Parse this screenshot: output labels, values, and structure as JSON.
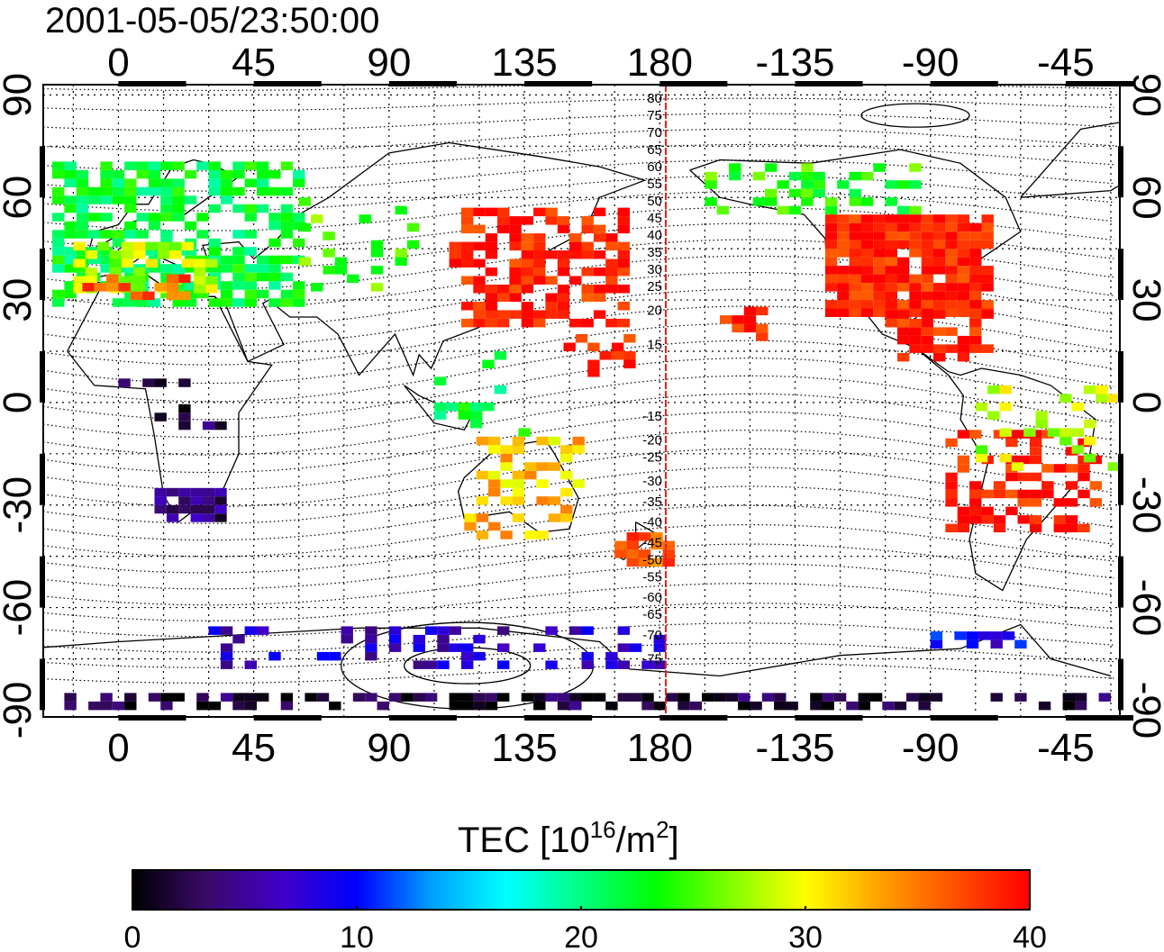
{
  "header": {
    "timestamp": "2001-05-05/23:50:00"
  },
  "map": {
    "lon_ticks": [
      {
        "lon": 0,
        "label": "0"
      },
      {
        "lon": 45,
        "label": "45"
      },
      {
        "lon": 90,
        "label": "90"
      },
      {
        "lon": 135,
        "label": "135"
      },
      {
        "lon": 180,
        "label": "180"
      },
      {
        "lon": 225,
        "label": "-135"
      },
      {
        "lon": 270,
        "label": "-90"
      },
      {
        "lon": 315,
        "label": "-45"
      }
    ],
    "lat_ticks": [
      {
        "lat": 90,
        "label": "90"
      },
      {
        "lat": 60,
        "label": "60"
      },
      {
        "lat": 30,
        "label": "30"
      },
      {
        "lat": 0,
        "label": "0"
      },
      {
        "lat": -30,
        "label": "-30"
      },
      {
        "lat": -60,
        "label": "-60"
      },
      {
        "lat": -90,
        "label": "-90"
      }
    ],
    "lon_range": [
      -25,
      333
    ],
    "lat_range": [
      -92,
      93
    ],
    "meridian_line": {
      "lon": 182,
      "color": "#e02020"
    },
    "mlat_labels": [
      {
        "lat": 89,
        "label": "80"
      },
      {
        "lat": 84,
        "label": "75"
      },
      {
        "lat": 79,
        "label": "70"
      },
      {
        "lat": 74,
        "label": "65"
      },
      {
        "lat": 69,
        "label": "60"
      },
      {
        "lat": 64,
        "label": "55"
      },
      {
        "lat": 59,
        "label": "50"
      },
      {
        "lat": 54,
        "label": "45"
      },
      {
        "lat": 49,
        "label": "40"
      },
      {
        "lat": 44,
        "label": "35"
      },
      {
        "lat": 39,
        "label": "30"
      },
      {
        "lat": 34,
        "label": "25"
      },
      {
        "lat": 27,
        "label": "20"
      },
      {
        "lat": 17,
        "label": "15"
      },
      {
        "lat": -4,
        "label": "-15"
      },
      {
        "lat": -11,
        "label": "-20"
      },
      {
        "lat": -16,
        "label": "-25"
      },
      {
        "lat": -23,
        "label": "-30"
      },
      {
        "lat": -29,
        "label": "-35"
      },
      {
        "lat": -35,
        "label": "-40"
      },
      {
        "lat": -41,
        "label": "-45"
      },
      {
        "lat": -46,
        "label": "-50"
      },
      {
        "lat": -51,
        "label": "-55"
      },
      {
        "lat": -57,
        "label": "-60"
      },
      {
        "lat": -62,
        "label": "-65"
      },
      {
        "lat": -68,
        "label": "-70"
      },
      {
        "lat": -75,
        "label": "-75"
      }
    ],
    "tec_regions": [
      {
        "lon0": -22,
        "lon1": 60,
        "lat0": 28,
        "lat1": 70,
        "v": 22,
        "density": 0.65
      },
      {
        "lon0": -15,
        "lon1": 30,
        "lat0": 32,
        "lat1": 45,
        "v": 28,
        "density": 0.5
      },
      {
        "lon0": -12,
        "lon1": 22,
        "lat0": 30,
        "lat1": 36,
        "v": 36,
        "density": 0.55
      },
      {
        "lon0": 60,
        "lon1": 100,
        "lat0": 30,
        "lat1": 60,
        "v": 25,
        "density": 0.2
      },
      {
        "lon0": 110,
        "lon1": 168,
        "lat0": 22,
        "lat1": 55,
        "v": 39,
        "density": 0.6
      },
      {
        "lon0": 140,
        "lon1": 170,
        "lat0": 5,
        "lat1": 20,
        "v": 39,
        "density": 0.25
      },
      {
        "lon0": 105,
        "lon1": 135,
        "lat0": -10,
        "lat1": 15,
        "v": 22,
        "density": 0.25
      },
      {
        "lon0": 115,
        "lon1": 155,
        "lat0": -40,
        "lat1": -12,
        "v": 32,
        "density": 0.35
      },
      {
        "lon0": 165,
        "lon1": 185,
        "lat0": -48,
        "lat1": -38,
        "v": 36,
        "density": 0.7
      },
      {
        "lon0": 195,
        "lon1": 265,
        "lat0": 55,
        "lat1": 70,
        "v": 24,
        "density": 0.35
      },
      {
        "lon0": 235,
        "lon1": 290,
        "lat0": 25,
        "lat1": 54,
        "v": 39,
        "density": 0.9
      },
      {
        "lon0": 255,
        "lon1": 290,
        "lat0": 12,
        "lat1": 25,
        "v": 39,
        "density": 0.55
      },
      {
        "lon0": 275,
        "lon1": 325,
        "lat0": -38,
        "lat1": -10,
        "v": 39,
        "density": 0.45
      },
      {
        "lon0": 285,
        "lon1": 330,
        "lat0": -20,
        "lat1": 5,
        "v": 28,
        "density": 0.25
      },
      {
        "lon0": 200,
        "lon1": 215,
        "lat0": 18,
        "lat1": 28,
        "v": 39,
        "density": 0.5
      },
      {
        "lon0": 12,
        "lon1": 33,
        "lat0": -35,
        "lat1": -25,
        "v": 4,
        "density": 0.85
      },
      {
        "lon0": 0,
        "lon1": 40,
        "lat0": -8,
        "lat1": 5,
        "v": 2,
        "density": 0.15
      },
      {
        "lon0": 270,
        "lon1": 300,
        "lat0": -72,
        "lat1": -68,
        "v": 9,
        "density": 0.6
      },
      {
        "lon0": 30,
        "lon1": 180,
        "lat0": -78,
        "lat1": -66,
        "v": 7,
        "density": 0.3
      },
      {
        "lon0": -22,
        "lon1": 330,
        "lat0": -90,
        "lat1": -87,
        "v": 2,
        "density": 0.5
      }
    ]
  },
  "colorbar": {
    "title": "TEC  [10",
    "title_sup": "16",
    "title_unit": "/m",
    "title_sup2": "2",
    "title_end": "]",
    "min": 0,
    "max": 40,
    "ticks": [
      {
        "value": 0,
        "label": "0"
      },
      {
        "value": 10,
        "label": "10"
      },
      {
        "value": 20,
        "label": "20"
      },
      {
        "value": 30,
        "label": "30"
      },
      {
        "value": 40,
        "label": "40"
      }
    ],
    "stops": [
      "#000000",
      "#3a0a6a",
      "#4000c8",
      "#0000ff",
      "#00a0ff",
      "#00ffff",
      "#00ff80",
      "#00ff00",
      "#80ff00",
      "#ffff00",
      "#ffa000",
      "#ff5000",
      "#ff0000"
    ]
  }
}
